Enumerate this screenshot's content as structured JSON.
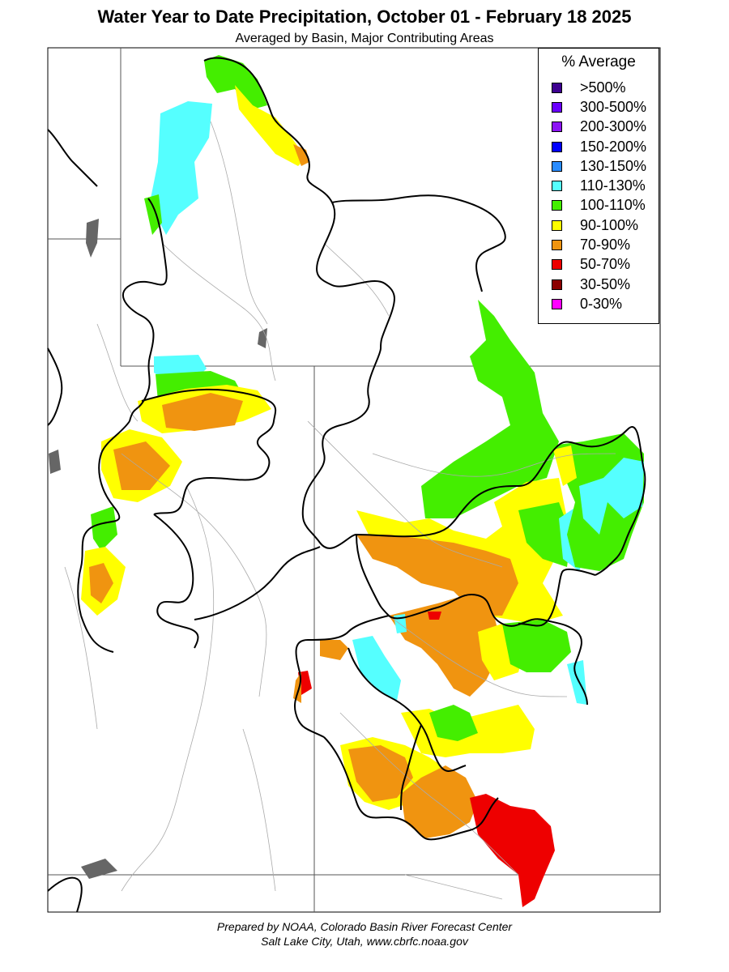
{
  "title": "Water Year to Date Precipitation, October 01  - February 18 2025",
  "subtitle": "Averaged by Basin, Major Contributing Areas",
  "legend": {
    "title": "% Average",
    "items": [
      {
        "label": ">500%",
        "color": "#3d0090"
      },
      {
        "label": "300-500%",
        "color": "#6a00ff"
      },
      {
        "label": "200-300%",
        "color": "#8c14f5"
      },
      {
        "label": "150-200%",
        "color": "#0000ff"
      },
      {
        "label": "130-150%",
        "color": "#2a8cff"
      },
      {
        "label": "110-130%",
        "color": "#55ffff"
      },
      {
        "label": "100-110%",
        "color": "#44ee00"
      },
      {
        "label": "90-100%",
        "color": "#ffff00"
      },
      {
        "label": "70-90%",
        "color": "#f09410"
      },
      {
        "label": "50-70%",
        "color": "#ee0000"
      },
      {
        "label": "30-50%",
        "color": "#8b0000"
      },
      {
        "label": "0-30%",
        "color": "#ff00ff"
      }
    ]
  },
  "footer": {
    "line1": "Prepared by NOAA, Colorado Basin River Forecast Center",
    "line2": "Salt Lake City, Utah, www.cbrfc.noaa.gov"
  }
}
